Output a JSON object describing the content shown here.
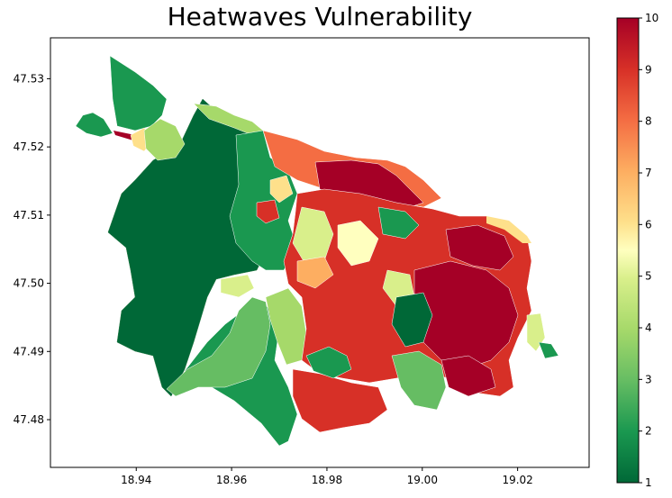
{
  "title": "Heatwaves Vulnerability",
  "map": {
    "type": "choropleth",
    "x_ticks": [
      "18.94",
      "18.96",
      "18.98",
      "19.00",
      "19.02"
    ],
    "y_ticks": [
      "47.53",
      "47.52",
      "47.51",
      "47.50",
      "47.49",
      "47.48"
    ],
    "xlim": [
      18.922,
      19.035
    ],
    "ylim": [
      47.473,
      47.536
    ]
  },
  "colorbar": {
    "ticks": [
      "1",
      "2",
      "3",
      "4",
      "5",
      "6",
      "7",
      "8",
      "9",
      "10"
    ],
    "range": [
      1,
      10
    ],
    "colormap": "RdYlGn_r",
    "colors": [
      "#006837",
      "#1a9850",
      "#66bd63",
      "#a6d96a",
      "#d9ef8b",
      "#fee08b",
      "#fdae61",
      "#f46d43",
      "#d73027",
      "#a50026"
    ]
  }
}
